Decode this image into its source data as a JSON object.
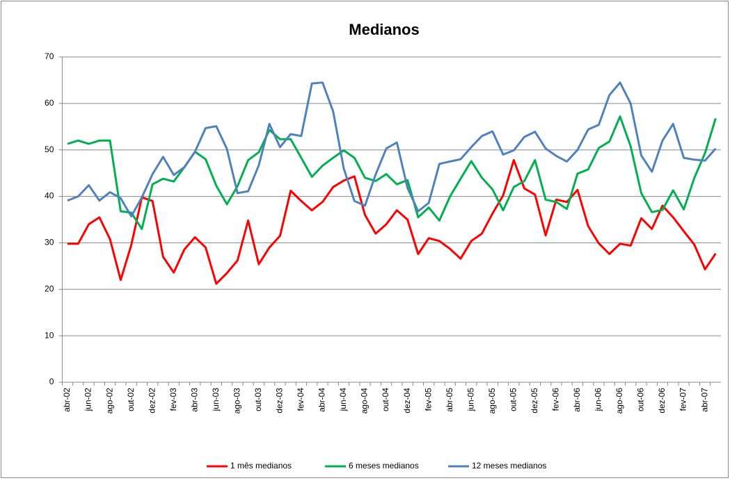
{
  "chart_data": {
    "type": "line",
    "title": "Medianos",
    "categories": [
      "abr-02",
      null,
      "jun-02",
      null,
      "ago-02",
      null,
      "out-02",
      null,
      "dez-02",
      null,
      "fev-03",
      null,
      "abr-03",
      null,
      "jun-03",
      null,
      "ago-03",
      null,
      "out-03",
      null,
      "dez-03",
      null,
      "fev-04",
      null,
      "abr-04",
      null,
      "jun-04",
      null,
      "ago-04",
      null,
      "out-04",
      null,
      "dez-04",
      null,
      "fev-05",
      null,
      "abr-05",
      null,
      "jun-05",
      null,
      "ago-05",
      null,
      "out-05",
      null,
      "dez-05",
      null,
      "fev-06",
      null,
      "abr-06",
      null,
      "jun-06",
      null,
      "ago-06",
      null,
      "out-06",
      null,
      "dez-06",
      null,
      "fev-07",
      null,
      "abr-07",
      null
    ],
    "series": [
      {
        "name": "1 mês medianos",
        "color": "#ff0000",
        "values": [
          29.8,
          29.8,
          34,
          35.5,
          30.8,
          22,
          29.5,
          39.8,
          39,
          27,
          23.6,
          28.6,
          31.2,
          29,
          21.2,
          23.5,
          26.2,
          34.8,
          25.4,
          29,
          31.5,
          41.2,
          39,
          37,
          38.8,
          42,
          43.4,
          44.3,
          36,
          32,
          34,
          37,
          35,
          27.6,
          31,
          30.4,
          28.7,
          26.6,
          30.4,
          32,
          36.3,
          40.2,
          47.8,
          41.7,
          40.4,
          31.6,
          39.3,
          38.8,
          41.4,
          33.6,
          29.9,
          27.6,
          29.8,
          29.4,
          35.3,
          33,
          38,
          35.5,
          32.5,
          29.6,
          24.3,
          27.7
        ]
      },
      {
        "name": "6 meses medianos",
        "color": "#00b050",
        "values": [
          51.3,
          52,
          51.3,
          52,
          52,
          36.8,
          36.5,
          33,
          42.6,
          43.8,
          43.2,
          46.3,
          49.6,
          48,
          42.3,
          38.3,
          42.2,
          47.8,
          49.5,
          54.3,
          52.3,
          52.3,
          48.3,
          44.2,
          46.6,
          48.3,
          49.9,
          48.3,
          44,
          43.3,
          44.8,
          42.6,
          43.5,
          35.5,
          37.6,
          34.8,
          40,
          43.8,
          47.6,
          44,
          41.5,
          37,
          42,
          43.3,
          47.8,
          39.3,
          38.8,
          37.3,
          44.9,
          45.8,
          50.4,
          51.8,
          57.2,
          50.8,
          40.7,
          36.6,
          37.1,
          41.3,
          37.2,
          44,
          49.3,
          56.8
        ]
      },
      {
        "name": "12 meses medianos",
        "color": "#4f81bd",
        "values": [
          39.1,
          40,
          42.4,
          39.1,
          40.9,
          39.6,
          35.7,
          39.8,
          44.8,
          48.5,
          44.6,
          46.3,
          49.6,
          54.7,
          55.1,
          50.2,
          40.7,
          41.1,
          46.7,
          55.6,
          50.6,
          53.4,
          53,
          64.3,
          64.5,
          58.3,
          46,
          39,
          38,
          44.7,
          50.3,
          51.6,
          41.8,
          36.8,
          38.6,
          47,
          47.5,
          48,
          50.6,
          53,
          54,
          49,
          49.9,
          52.8,
          53.9,
          50.3,
          48.7,
          47.5,
          50,
          54.4,
          55.4,
          61.8,
          64.5,
          60,
          48.8,
          45.3,
          52,
          55.6,
          48.3,
          47.9,
          47.7,
          50.3
        ]
      }
    ],
    "ylim": [
      0,
      70
    ],
    "yticks": [
      0,
      10,
      20,
      30,
      40,
      50,
      60,
      70
    ],
    "grid": true,
    "legend": "bottom"
  }
}
